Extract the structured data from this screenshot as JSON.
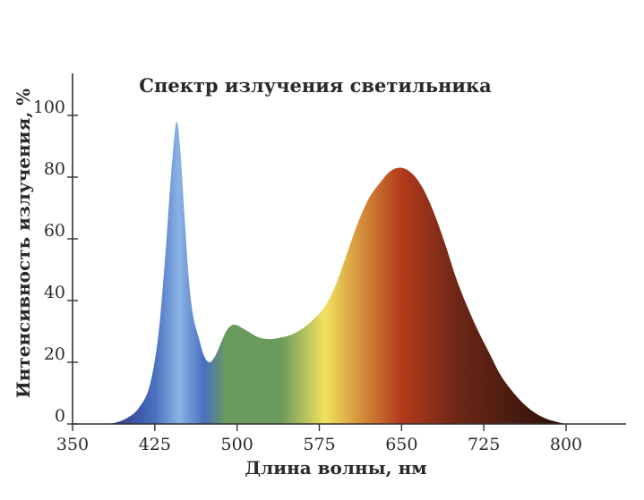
{
  "chart_data": {
    "type": "area",
    "title": "Спектр излучения светильника",
    "xlabel": "Длина волны, нм",
    "ylabel": "Интенсивность излучения, %",
    "xlim": [
      350,
      800
    ],
    "ylim": [
      0,
      100
    ],
    "x_ticks": [
      350,
      425,
      500,
      575,
      650,
      725,
      800
    ],
    "y_ticks": [
      0,
      20,
      40,
      60,
      80,
      100
    ],
    "grid": false,
    "series": [
      {
        "x": [
          380,
          390,
          400,
          410,
          420,
          428,
          434,
          438,
          442,
          445,
          448,
          452,
          456,
          460,
          465,
          470,
          475,
          480,
          485,
          490,
          495,
          500,
          505,
          510,
          520,
          530,
          540,
          550,
          560,
          570,
          580,
          590,
          600,
          610,
          620,
          630,
          640,
          650,
          660,
          670,
          680,
          690,
          700,
          710,
          720,
          730,
          740,
          750,
          760,
          770,
          780,
          790,
          800
        ],
        "y": [
          0,
          0.5,
          2,
          5,
          12,
          28,
          52,
          72,
          90,
          98,
          90,
          68,
          47,
          35,
          28,
          22,
          20,
          22,
          26,
          30,
          32,
          32,
          31,
          30,
          28,
          27.5,
          28,
          29,
          31,
          34,
          38,
          45,
          55,
          65,
          73,
          78,
          82,
          83,
          81,
          76,
          68,
          58,
          47,
          38,
          30,
          23,
          16,
          11,
          7,
          4,
          2,
          0.8,
          0
        ]
      }
    ],
    "colors": {
      "violet": "#2b2e7a",
      "blue": "#4a6fbf",
      "light_blue": "#8ab4e6",
      "green": "#6a9a5c",
      "yellow": "#f2e25e",
      "orange": "#d38a3a",
      "red": "#b33a1c",
      "dark_red": "#6e2716",
      "brown": "#2e120c",
      "axis": "#333333"
    }
  }
}
